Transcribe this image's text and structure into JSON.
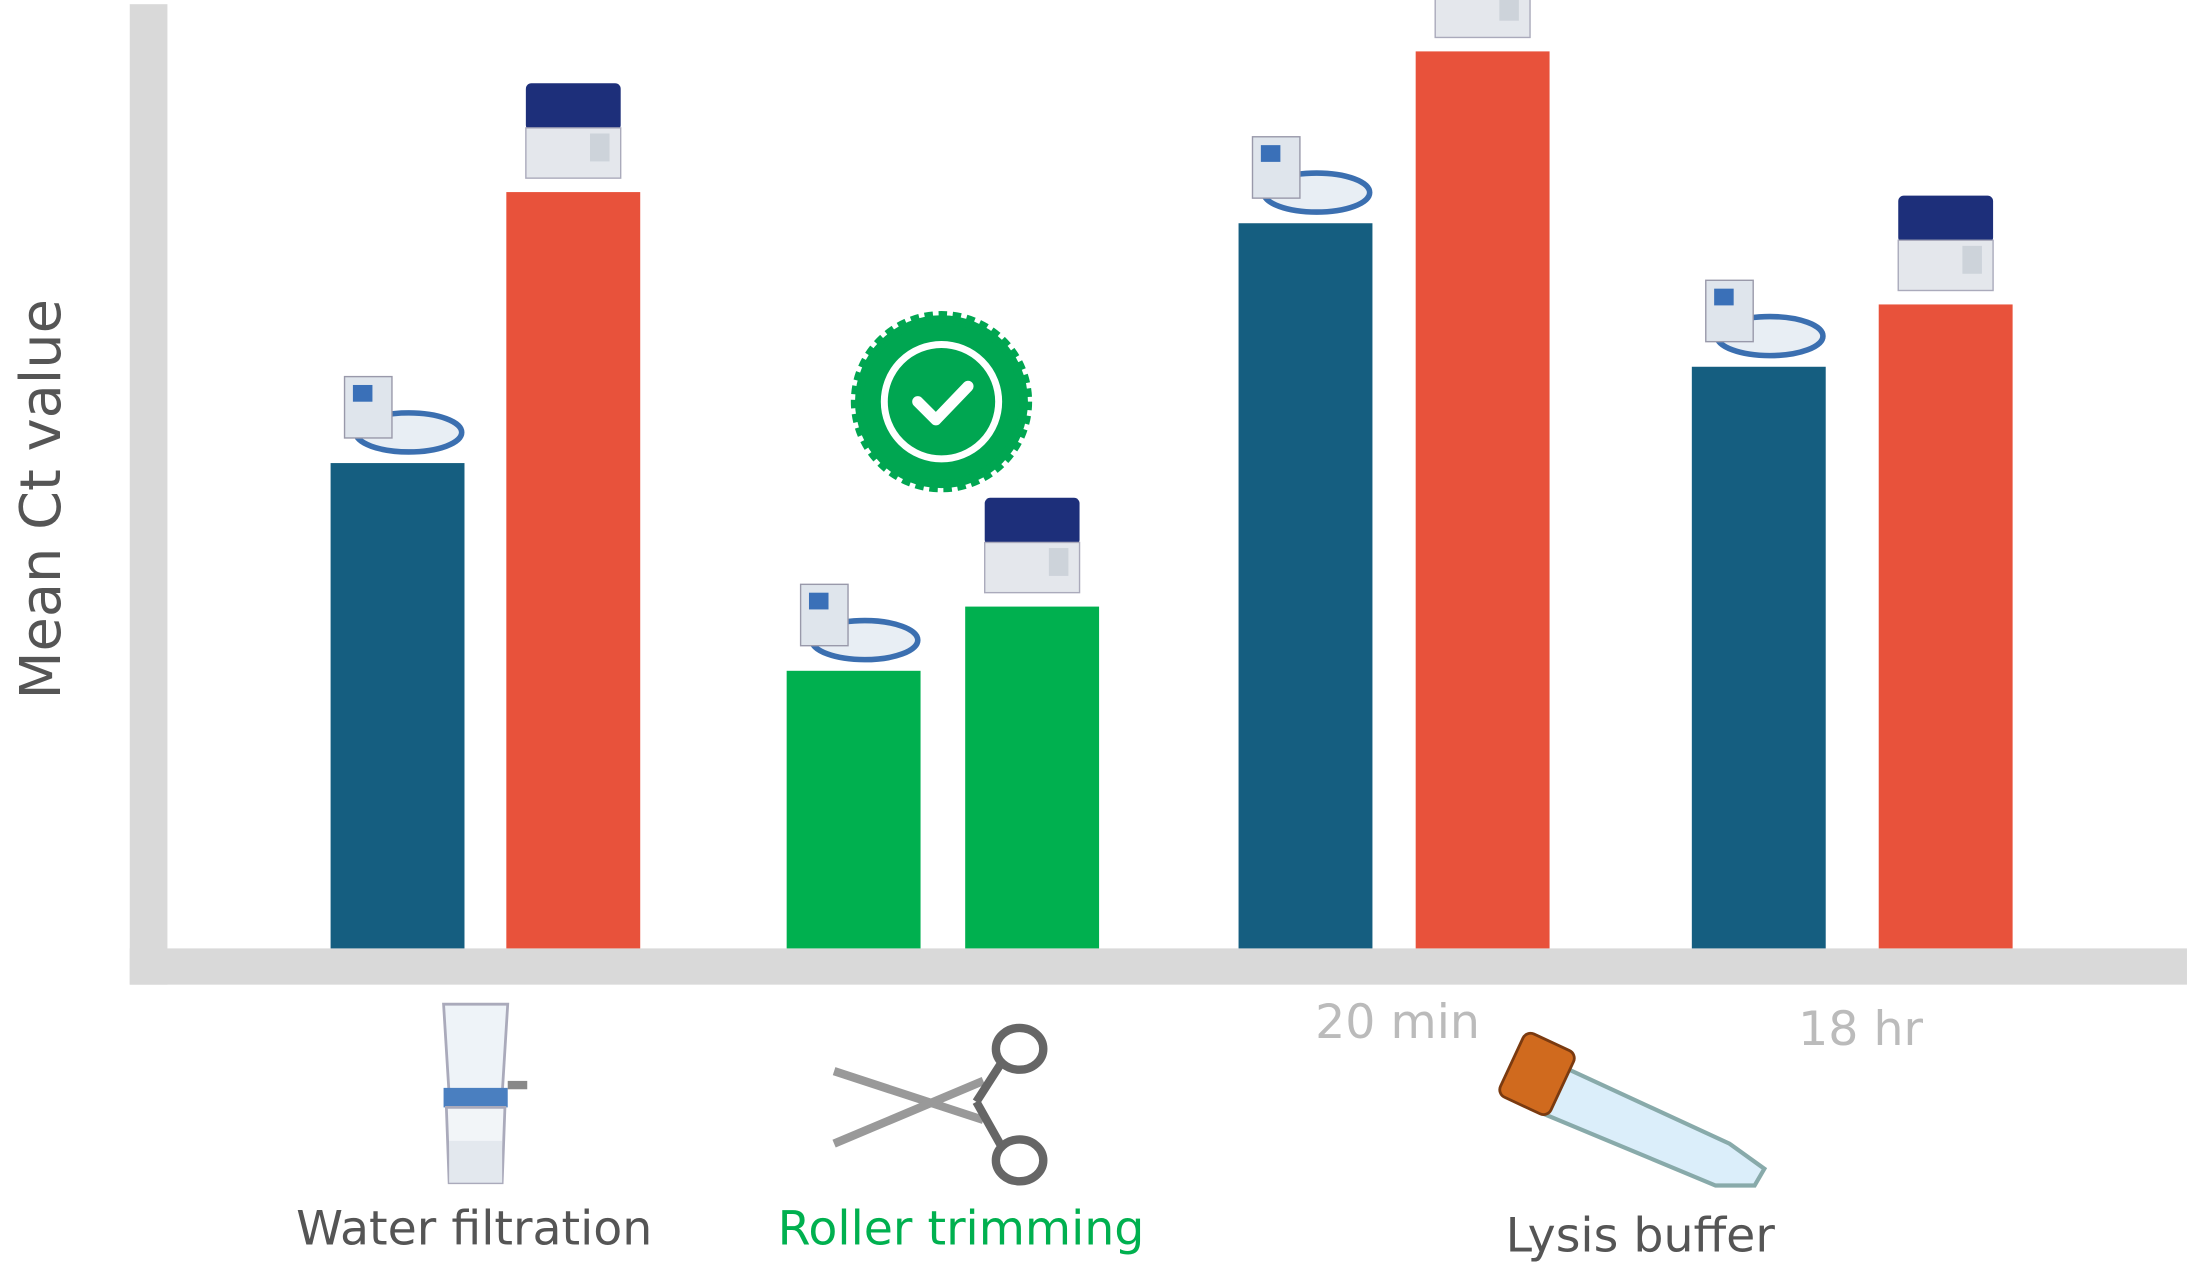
{
  "chart_data": {
    "type": "bar",
    "y_label": "Mean Ct value",
    "categories": [
      "Water filtration",
      "Roller trimming",
      "20 min",
      "18 hr"
    ],
    "category_label_colors": [
      "#555555",
      "#00b04f",
      "#bbbbbb",
      "#bbbbbb"
    ],
    "group_label": "Lysis buffer",
    "ylim": [
      0,
      100
    ],
    "series": [
      {
        "colors": [
          "#155e80",
          "#00b04f",
          "#155e80",
          "#155e80"
        ],
        "values": [
          51.4,
          29.4,
          76.8,
          61.6
        ]
      },
      {
        "colors": [
          "#e8523b",
          "#00b04f",
          "#e8523b",
          "#e8523b"
        ],
        "values": [
          80.1,
          36.2,
          95.0,
          68.2
        ]
      }
    ],
    "axis_color": "#d9d9d9"
  }
}
